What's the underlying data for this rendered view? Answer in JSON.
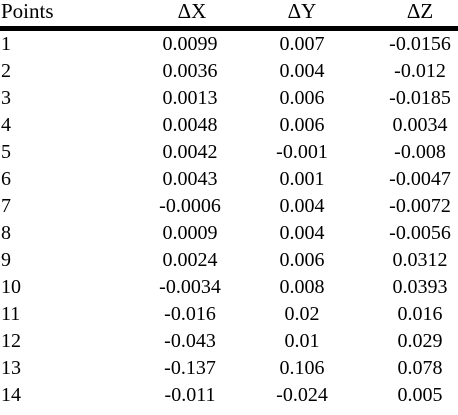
{
  "table": {
    "headers": [
      "Points",
      "ΔX",
      "ΔY",
      "ΔZ"
    ],
    "rows": [
      [
        "1",
        "0.0099",
        "0.007",
        "-0.0156"
      ],
      [
        "2",
        "0.0036",
        "0.004",
        "-0.012"
      ],
      [
        "3",
        "0.0013",
        "0.006",
        "-0.0185"
      ],
      [
        "4",
        "0.0048",
        "0.006",
        "0.0034"
      ],
      [
        "5",
        "0.0042",
        "-0.001",
        "-0.008"
      ],
      [
        "6",
        "0.0043",
        "0.001",
        "-0.0047"
      ],
      [
        "7",
        "-0.0006",
        "0.004",
        "-0.0072"
      ],
      [
        "8",
        "0.0009",
        "0.004",
        "-0.0056"
      ],
      [
        "9",
        "0.0024",
        "0.006",
        "0.0312"
      ],
      [
        "10",
        "-0.0034",
        "0.008",
        "0.0393"
      ],
      [
        "11",
        "-0.016",
        "0.02",
        "0.016"
      ],
      [
        "12",
        "-0.043",
        "0.01",
        "0.029"
      ],
      [
        "13",
        "-0.137",
        "0.106",
        "0.078"
      ],
      [
        "14",
        "-0.011",
        "-0.024",
        "0.005"
      ]
    ]
  }
}
